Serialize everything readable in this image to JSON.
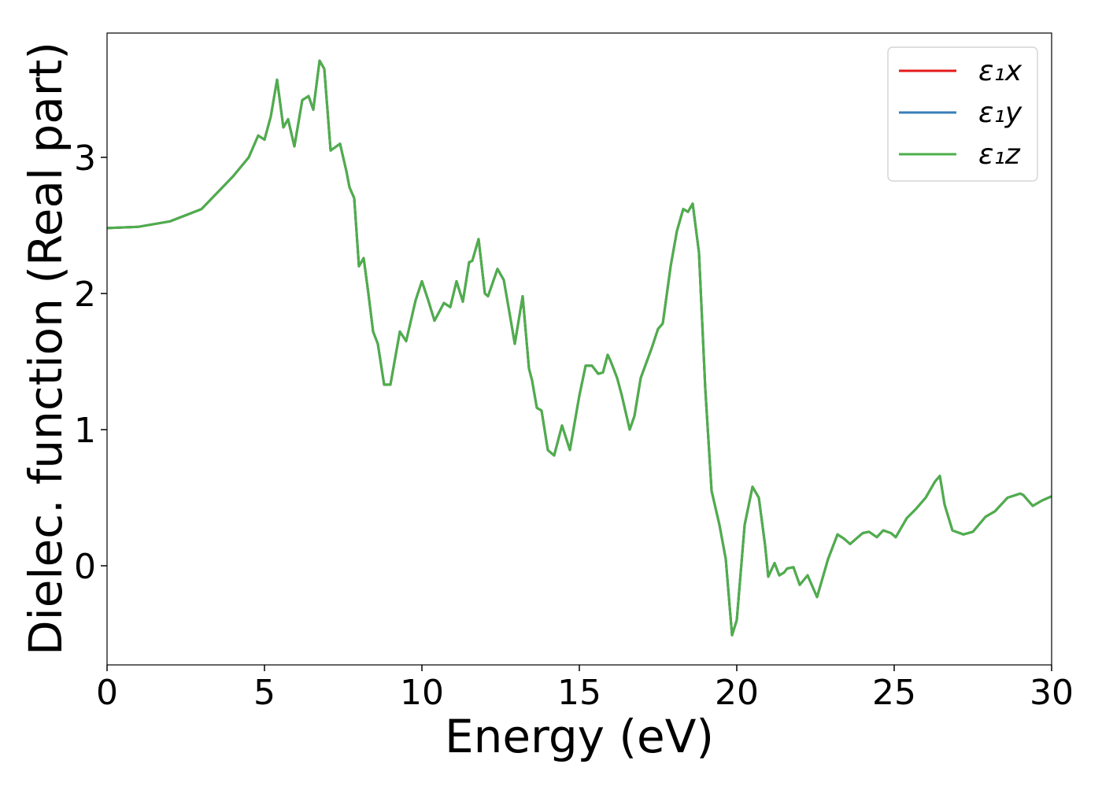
{
  "chart_data": {
    "type": "line",
    "xlabel": "Energy (eV)",
    "ylabel": "Dielec. function (Real part)",
    "x": [
      0,
      1,
      2,
      3,
      4,
      4.5,
      4.8,
      5.0,
      5.2,
      5.4,
      5.6,
      5.75,
      5.95,
      6.2,
      6.4,
      6.55,
      6.75,
      6.9,
      7.1,
      7.4,
      7.6,
      7.7,
      7.85,
      8.0,
      8.15,
      8.3,
      8.45,
      8.6,
      8.8,
      9.0,
      9.3,
      9.5,
      9.8,
      10.0,
      10.2,
      10.4,
      10.7,
      10.9,
      11.1,
      11.3,
      11.5,
      11.6,
      11.8,
      12.0,
      12.1,
      12.4,
      12.6,
      12.75,
      12.95,
      13.2,
      13.4,
      13.5,
      13.65,
      13.8,
      14.0,
      14.2,
      14.45,
      14.7,
      15.0,
      15.2,
      15.4,
      15.6,
      15.75,
      15.9,
      16.0,
      16.2,
      16.35,
      16.6,
      16.75,
      16.95,
      17.3,
      17.5,
      17.65,
      17.9,
      18.1,
      18.3,
      18.45,
      18.6,
      18.8,
      19.0,
      19.2,
      19.45,
      19.65,
      19.85,
      20.0,
      20.25,
      20.5,
      20.7,
      20.9,
      21.0,
      21.2,
      21.35,
      21.5,
      21.6,
      21.8,
      22.0,
      22.25,
      22.55,
      22.9,
      23.2,
      23.4,
      23.6,
      23.8,
      24.0,
      24.2,
      24.45,
      24.65,
      24.9,
      25.05,
      25.4,
      25.7,
      26.0,
      26.3,
      26.45,
      26.6,
      26.85,
      27.2,
      27.5,
      27.9,
      28.2,
      28.6,
      29.0,
      29.1,
      29.4,
      29.7,
      30.0
    ],
    "series": [
      {
        "name": "ε₁x",
        "color": "#e41a1c",
        "values": [
          2.48,
          2.49,
          2.53,
          2.62,
          2.86,
          3.0,
          3.16,
          3.13,
          3.3,
          3.57,
          3.22,
          3.28,
          3.08,
          3.42,
          3.45,
          3.35,
          3.71,
          3.65,
          3.05,
          3.1,
          2.9,
          2.78,
          2.7,
          2.2,
          2.26,
          2.0,
          1.72,
          1.63,
          1.33,
          1.33,
          1.72,
          1.65,
          1.95,
          2.09,
          1.95,
          1.8,
          1.93,
          1.9,
          2.09,
          1.94,
          2.23,
          2.24,
          2.4,
          2.0,
          1.98,
          2.18,
          2.1,
          1.9,
          1.63,
          1.98,
          1.45,
          1.36,
          1.16,
          1.14,
          0.85,
          0.81,
          1.03,
          0.85,
          1.25,
          1.47,
          1.47,
          1.41,
          1.42,
          1.55,
          1.5,
          1.38,
          1.25,
          1.0,
          1.1,
          1.38,
          1.6,
          1.74,
          1.78,
          2.2,
          2.46,
          2.62,
          2.6,
          2.66,
          2.3,
          1.3,
          0.55,
          0.3,
          0.05,
          -0.51,
          -0.4,
          0.3,
          0.58,
          0.5,
          0.15,
          -0.08,
          0.02,
          -0.07,
          -0.05,
          -0.02,
          -0.01,
          -0.14,
          -0.07,
          -0.23,
          0.05,
          0.23,
          0.2,
          0.16,
          0.2,
          0.24,
          0.25,
          0.21,
          0.26,
          0.24,
          0.21,
          0.35,
          0.42,
          0.5,
          0.62,
          0.66,
          0.45,
          0.26,
          0.23,
          0.25,
          0.36,
          0.4,
          0.5,
          0.53,
          0.52,
          0.44,
          0.48,
          0.51
        ]
      },
      {
        "name": "ε₁y",
        "color": "#377eb8",
        "values": [
          2.48,
          2.49,
          2.53,
          2.62,
          2.86,
          3.0,
          3.16,
          3.13,
          3.3,
          3.57,
          3.22,
          3.28,
          3.08,
          3.42,
          3.45,
          3.35,
          3.71,
          3.65,
          3.05,
          3.1,
          2.9,
          2.78,
          2.7,
          2.2,
          2.26,
          2.0,
          1.72,
          1.63,
          1.33,
          1.33,
          1.72,
          1.65,
          1.95,
          2.09,
          1.95,
          1.8,
          1.93,
          1.9,
          2.09,
          1.94,
          2.23,
          2.24,
          2.4,
          2.0,
          1.98,
          2.18,
          2.1,
          1.9,
          1.63,
          1.98,
          1.45,
          1.36,
          1.16,
          1.14,
          0.85,
          0.81,
          1.03,
          0.85,
          1.25,
          1.47,
          1.47,
          1.41,
          1.42,
          1.55,
          1.5,
          1.38,
          1.25,
          1.0,
          1.1,
          1.38,
          1.6,
          1.74,
          1.78,
          2.2,
          2.46,
          2.62,
          2.6,
          2.66,
          2.3,
          1.3,
          0.55,
          0.3,
          0.05,
          -0.51,
          -0.4,
          0.3,
          0.58,
          0.5,
          0.15,
          -0.08,
          0.02,
          -0.07,
          -0.05,
          -0.02,
          -0.01,
          -0.14,
          -0.07,
          -0.23,
          0.05,
          0.23,
          0.2,
          0.16,
          0.2,
          0.24,
          0.25,
          0.21,
          0.26,
          0.24,
          0.21,
          0.35,
          0.42,
          0.5,
          0.62,
          0.66,
          0.45,
          0.26,
          0.23,
          0.25,
          0.36,
          0.4,
          0.5,
          0.53,
          0.52,
          0.44,
          0.48,
          0.51
        ]
      },
      {
        "name": "ε₁z",
        "color": "#4daf4a",
        "values": [
          2.48,
          2.49,
          2.53,
          2.62,
          2.86,
          3.0,
          3.16,
          3.13,
          3.3,
          3.57,
          3.22,
          3.28,
          3.08,
          3.42,
          3.45,
          3.35,
          3.71,
          3.65,
          3.05,
          3.1,
          2.9,
          2.78,
          2.7,
          2.2,
          2.26,
          2.0,
          1.72,
          1.63,
          1.33,
          1.33,
          1.72,
          1.65,
          1.95,
          2.09,
          1.95,
          1.8,
          1.93,
          1.9,
          2.09,
          1.94,
          2.23,
          2.24,
          2.4,
          2.0,
          1.98,
          2.18,
          2.1,
          1.9,
          1.63,
          1.98,
          1.45,
          1.36,
          1.16,
          1.14,
          0.85,
          0.81,
          1.03,
          0.85,
          1.25,
          1.47,
          1.47,
          1.41,
          1.42,
          1.55,
          1.5,
          1.38,
          1.25,
          1.0,
          1.1,
          1.38,
          1.6,
          1.74,
          1.78,
          2.2,
          2.46,
          2.62,
          2.6,
          2.66,
          2.3,
          1.3,
          0.55,
          0.3,
          0.05,
          -0.51,
          -0.4,
          0.3,
          0.58,
          0.5,
          0.15,
          -0.08,
          0.02,
          -0.07,
          -0.05,
          -0.02,
          -0.01,
          -0.14,
          -0.07,
          -0.23,
          0.05,
          0.23,
          0.2,
          0.16,
          0.2,
          0.24,
          0.25,
          0.21,
          0.26,
          0.24,
          0.21,
          0.35,
          0.42,
          0.5,
          0.62,
          0.66,
          0.45,
          0.26,
          0.23,
          0.25,
          0.36,
          0.4,
          0.5,
          0.53,
          0.52,
          0.44,
          0.48,
          0.51
        ]
      }
    ],
    "xlim": [
      0,
      30
    ],
    "xticks": [
      0,
      5,
      10,
      15,
      20,
      25,
      30
    ],
    "ylim": [
      -0.728,
      3.913
    ],
    "yticks": [
      0,
      1,
      2,
      3
    ],
    "legend": "upper right",
    "grid": false
  }
}
